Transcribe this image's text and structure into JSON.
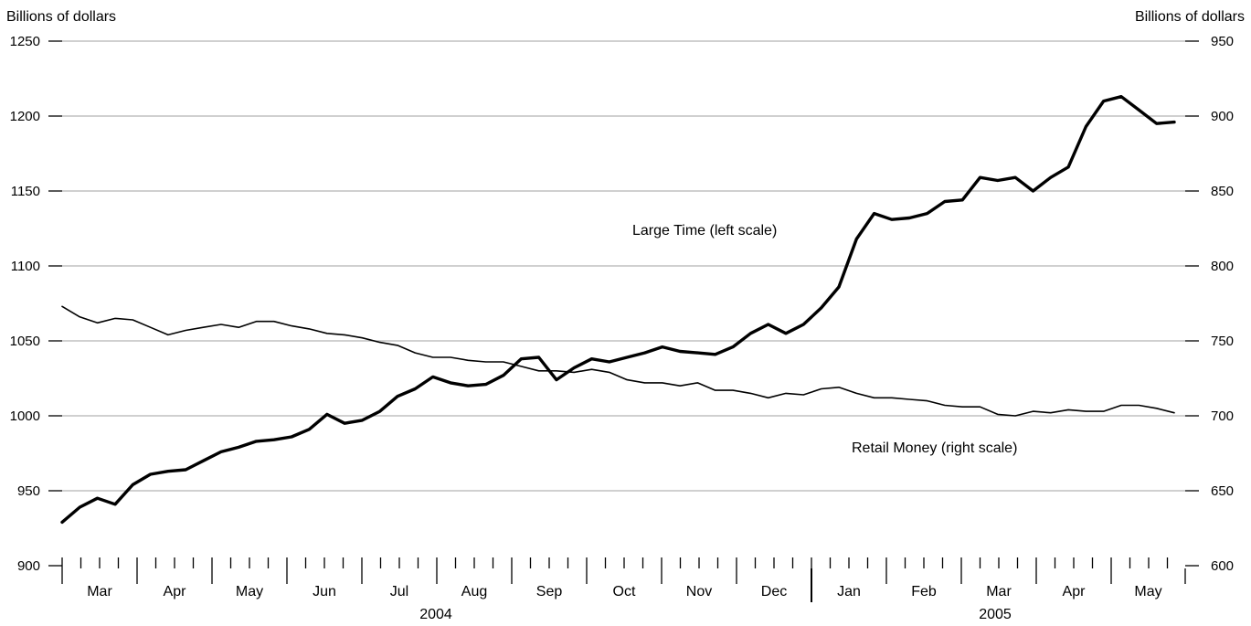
{
  "chart_data": {
    "type": "line",
    "title": "",
    "left_axis": {
      "label": "Billions of dollars",
      "range": [
        900,
        1250
      ],
      "ticks": [
        "900",
        "950",
        "1000",
        "1050",
        "1100",
        "1150",
        "1200",
        "1250"
      ]
    },
    "right_axis": {
      "label": "Billions of dollars",
      "range": [
        600,
        950
      ],
      "ticks": [
        "600",
        "650",
        "700",
        "750",
        "800",
        "850",
        "900",
        "950"
      ]
    },
    "grid": true,
    "x_axis": {
      "months": [
        "Mar",
        "Apr",
        "May",
        "Jun",
        "Jul",
        "Aug",
        "Sep",
        "Oct",
        "Nov",
        "Dec",
        "Jan",
        "Feb",
        "Mar",
        "Apr",
        "May"
      ],
      "years": [
        "2004",
        "2005"
      ],
      "weekly_ticks": true
    },
    "series": [
      {
        "name": "Large Time (left scale)",
        "axis": "left",
        "line_width": "thick",
        "values": [
          929,
          939,
          945,
          941,
          954,
          961,
          963,
          964,
          970,
          976,
          979,
          983,
          984,
          986,
          991,
          1001,
          995,
          997,
          1003,
          1013,
          1018,
          1026,
          1022,
          1020,
          1021,
          1027,
          1038,
          1039,
          1024,
          1032,
          1038,
          1036,
          1039,
          1042,
          1046,
          1043,
          1042,
          1041,
          1046,
          1055,
          1061,
          1055,
          1061,
          1072,
          1086,
          1118,
          1135,
          1131,
          1132,
          1135,
          1143,
          1144,
          1159,
          1157,
          1159,
          1150,
          1159,
          1166,
          1193,
          1210,
          1213,
          1204,
          1195,
          1196
        ]
      },
      {
        "name": "Retail Money (right scale)",
        "axis": "right",
        "line_width": "thin",
        "values": [
          773,
          766,
          762,
          765,
          764,
          759,
          754,
          757,
          759,
          761,
          759,
          763,
          763,
          760,
          758,
          755,
          754,
          752,
          749,
          747,
          742,
          739,
          739,
          737,
          736,
          736,
          733,
          730,
          730,
          729,
          731,
          729,
          724,
          722,
          722,
          720,
          722,
          717,
          717,
          715,
          712,
          715,
          714,
          718,
          719,
          715,
          712,
          712,
          711,
          710,
          707,
          706,
          706,
          701,
          700,
          703,
          702,
          704,
          703,
          703,
          707,
          707,
          705,
          702
        ]
      }
    ]
  }
}
